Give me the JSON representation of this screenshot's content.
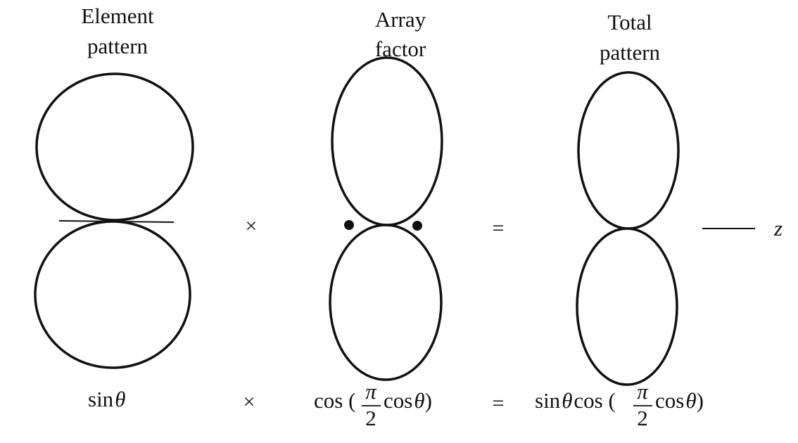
{
  "panels": [
    {
      "title_lines": [
        "Element",
        "pattern"
      ],
      "formula": {
        "func": "sin",
        "var": "θ"
      }
    },
    {
      "title_lines": [
        "Array",
        "factor"
      ],
      "formula": {
        "func": "cos (",
        "frac_num": "π",
        "frac_den": "2",
        "func2": "cos",
        "var": "θ",
        "close": ")"
      }
    },
    {
      "title_lines": [
        "Total",
        "pattern"
      ],
      "formula": {
        "func_a": "sin",
        "var_a": "θ",
        "func": "cos (",
        "frac_num": "π",
        "frac_den": "2",
        "func2": "cos",
        "var": "θ",
        "close": ")"
      }
    }
  ],
  "operators": {
    "times": "×",
    "equals": "="
  },
  "axis_label": "z"
}
